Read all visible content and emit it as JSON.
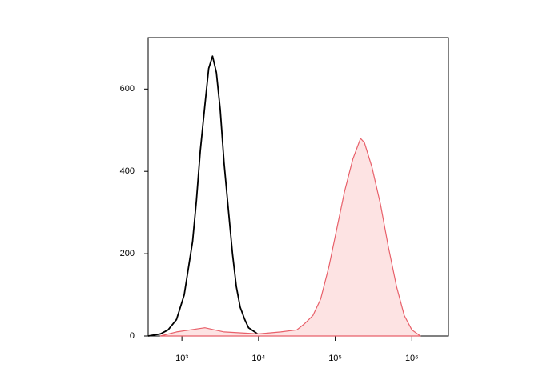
{
  "chart_data": {
    "type": "histogram-line",
    "xscale": "log",
    "xlim": [
      363,
      3000000
    ],
    "ylim": [
      0,
      725
    ],
    "xticks": [
      {
        "value": 1000,
        "label": "10³"
      },
      {
        "value": 10000,
        "label": "10⁴"
      },
      {
        "value": 100000,
        "label": "10⁵"
      },
      {
        "value": 1000000,
        "label": "10⁶"
      }
    ],
    "yticks": [
      0,
      200,
      400,
      600
    ],
    "series": [
      {
        "color": "#000000",
        "filled": false,
        "x": [
          363,
          525,
          661,
          851,
          1072,
          1380,
          1549,
          1738,
          1995,
          2239,
          2512,
          2818,
          3162,
          3548,
          4074,
          4571,
          5129,
          5754,
          6607,
          7413,
          8913,
          10471
        ],
        "values": [
          0,
          5,
          15,
          40,
          100,
          230,
          330,
          450,
          560,
          650,
          680,
          640,
          550,
          420,
          300,
          200,
          120,
          70,
          40,
          20,
          10,
          0
        ]
      },
      {
        "color": "#e8606a",
        "fill": "#fde3e3",
        "filled": true,
        "x": [
          525,
          851,
          1995,
          3548,
          10000,
          19498,
          31623,
          39811,
          51286,
          64565,
          83176,
          104713,
          131826,
          169824,
          213796,
          239883,
          301995,
          389045,
          489779,
          630957,
          794328,
          1000000,
          1288250
        ],
        "values": [
          0,
          10,
          20,
          10,
          5,
          10,
          15,
          30,
          50,
          90,
          170,
          260,
          350,
          430,
          480,
          470,
          410,
          320,
          220,
          120,
          50,
          15,
          0
        ]
      }
    ]
  }
}
